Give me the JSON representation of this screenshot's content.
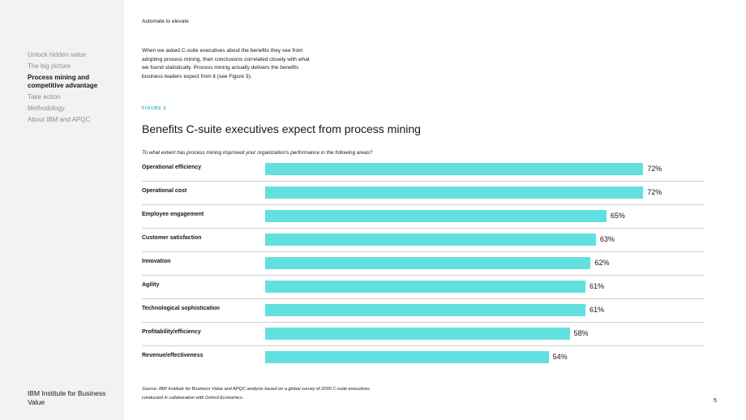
{
  "sidebar": {
    "items": [
      {
        "label": "Unlock hidden value",
        "active": false
      },
      {
        "label": "The big picture",
        "active": false
      },
      {
        "label": "Process mining and\ncompetitive advantage",
        "active": true
      },
      {
        "label": "Take action",
        "active": false
      },
      {
        "label": "Methodology",
        "active": false
      },
      {
        "label": "About IBM and APQC",
        "active": false
      }
    ],
    "brand": "IBM Institute for Business Value"
  },
  "header": {
    "running_head": "Automate to elevate"
  },
  "intro_text": "When we asked C-suite executives about the benefits they see from adopting process mining, their conclusions correlated closely with what we found statistically. Process mining actually delivers the benefits business leaders expect from it (see Figure 3).",
  "figure": {
    "label": "FIGURE 2",
    "title": "Benefits C-suite executives expect from process mining",
    "question": "To what extent has process mining improved your organization's performance in the following areas?",
    "source": "Source: IBM Institute for Business Value and APQC analysis based on a global survey of 2000 C-suite executives conducted in collaboration with Oxford Economics."
  },
  "chart_data": {
    "type": "bar",
    "orientation": "horizontal",
    "categories": [
      "Operational efficiency",
      "Operational cost",
      "Employee engagement",
      "Customer satisfaction",
      "Innovation",
      "Agility",
      "Technological sophistication",
      "Profitability/efficiency",
      "Revenue/effectiveness"
    ],
    "values": [
      72,
      72,
      65,
      63,
      62,
      61,
      61,
      58,
      54
    ],
    "value_labels": [
      "72%",
      "72%",
      "65%",
      "63%",
      "62%",
      "61%",
      "61%",
      "58%",
      "54%"
    ],
    "bar_color": "#62e0e0",
    "xlim": [
      0,
      100
    ],
    "grid": false,
    "legend": "none"
  },
  "page": {
    "number": "5"
  },
  "colors": {
    "accent": "#62e0e0",
    "figure_label": "#33b1d6",
    "sidebar_bg": "#f2f2f2"
  }
}
